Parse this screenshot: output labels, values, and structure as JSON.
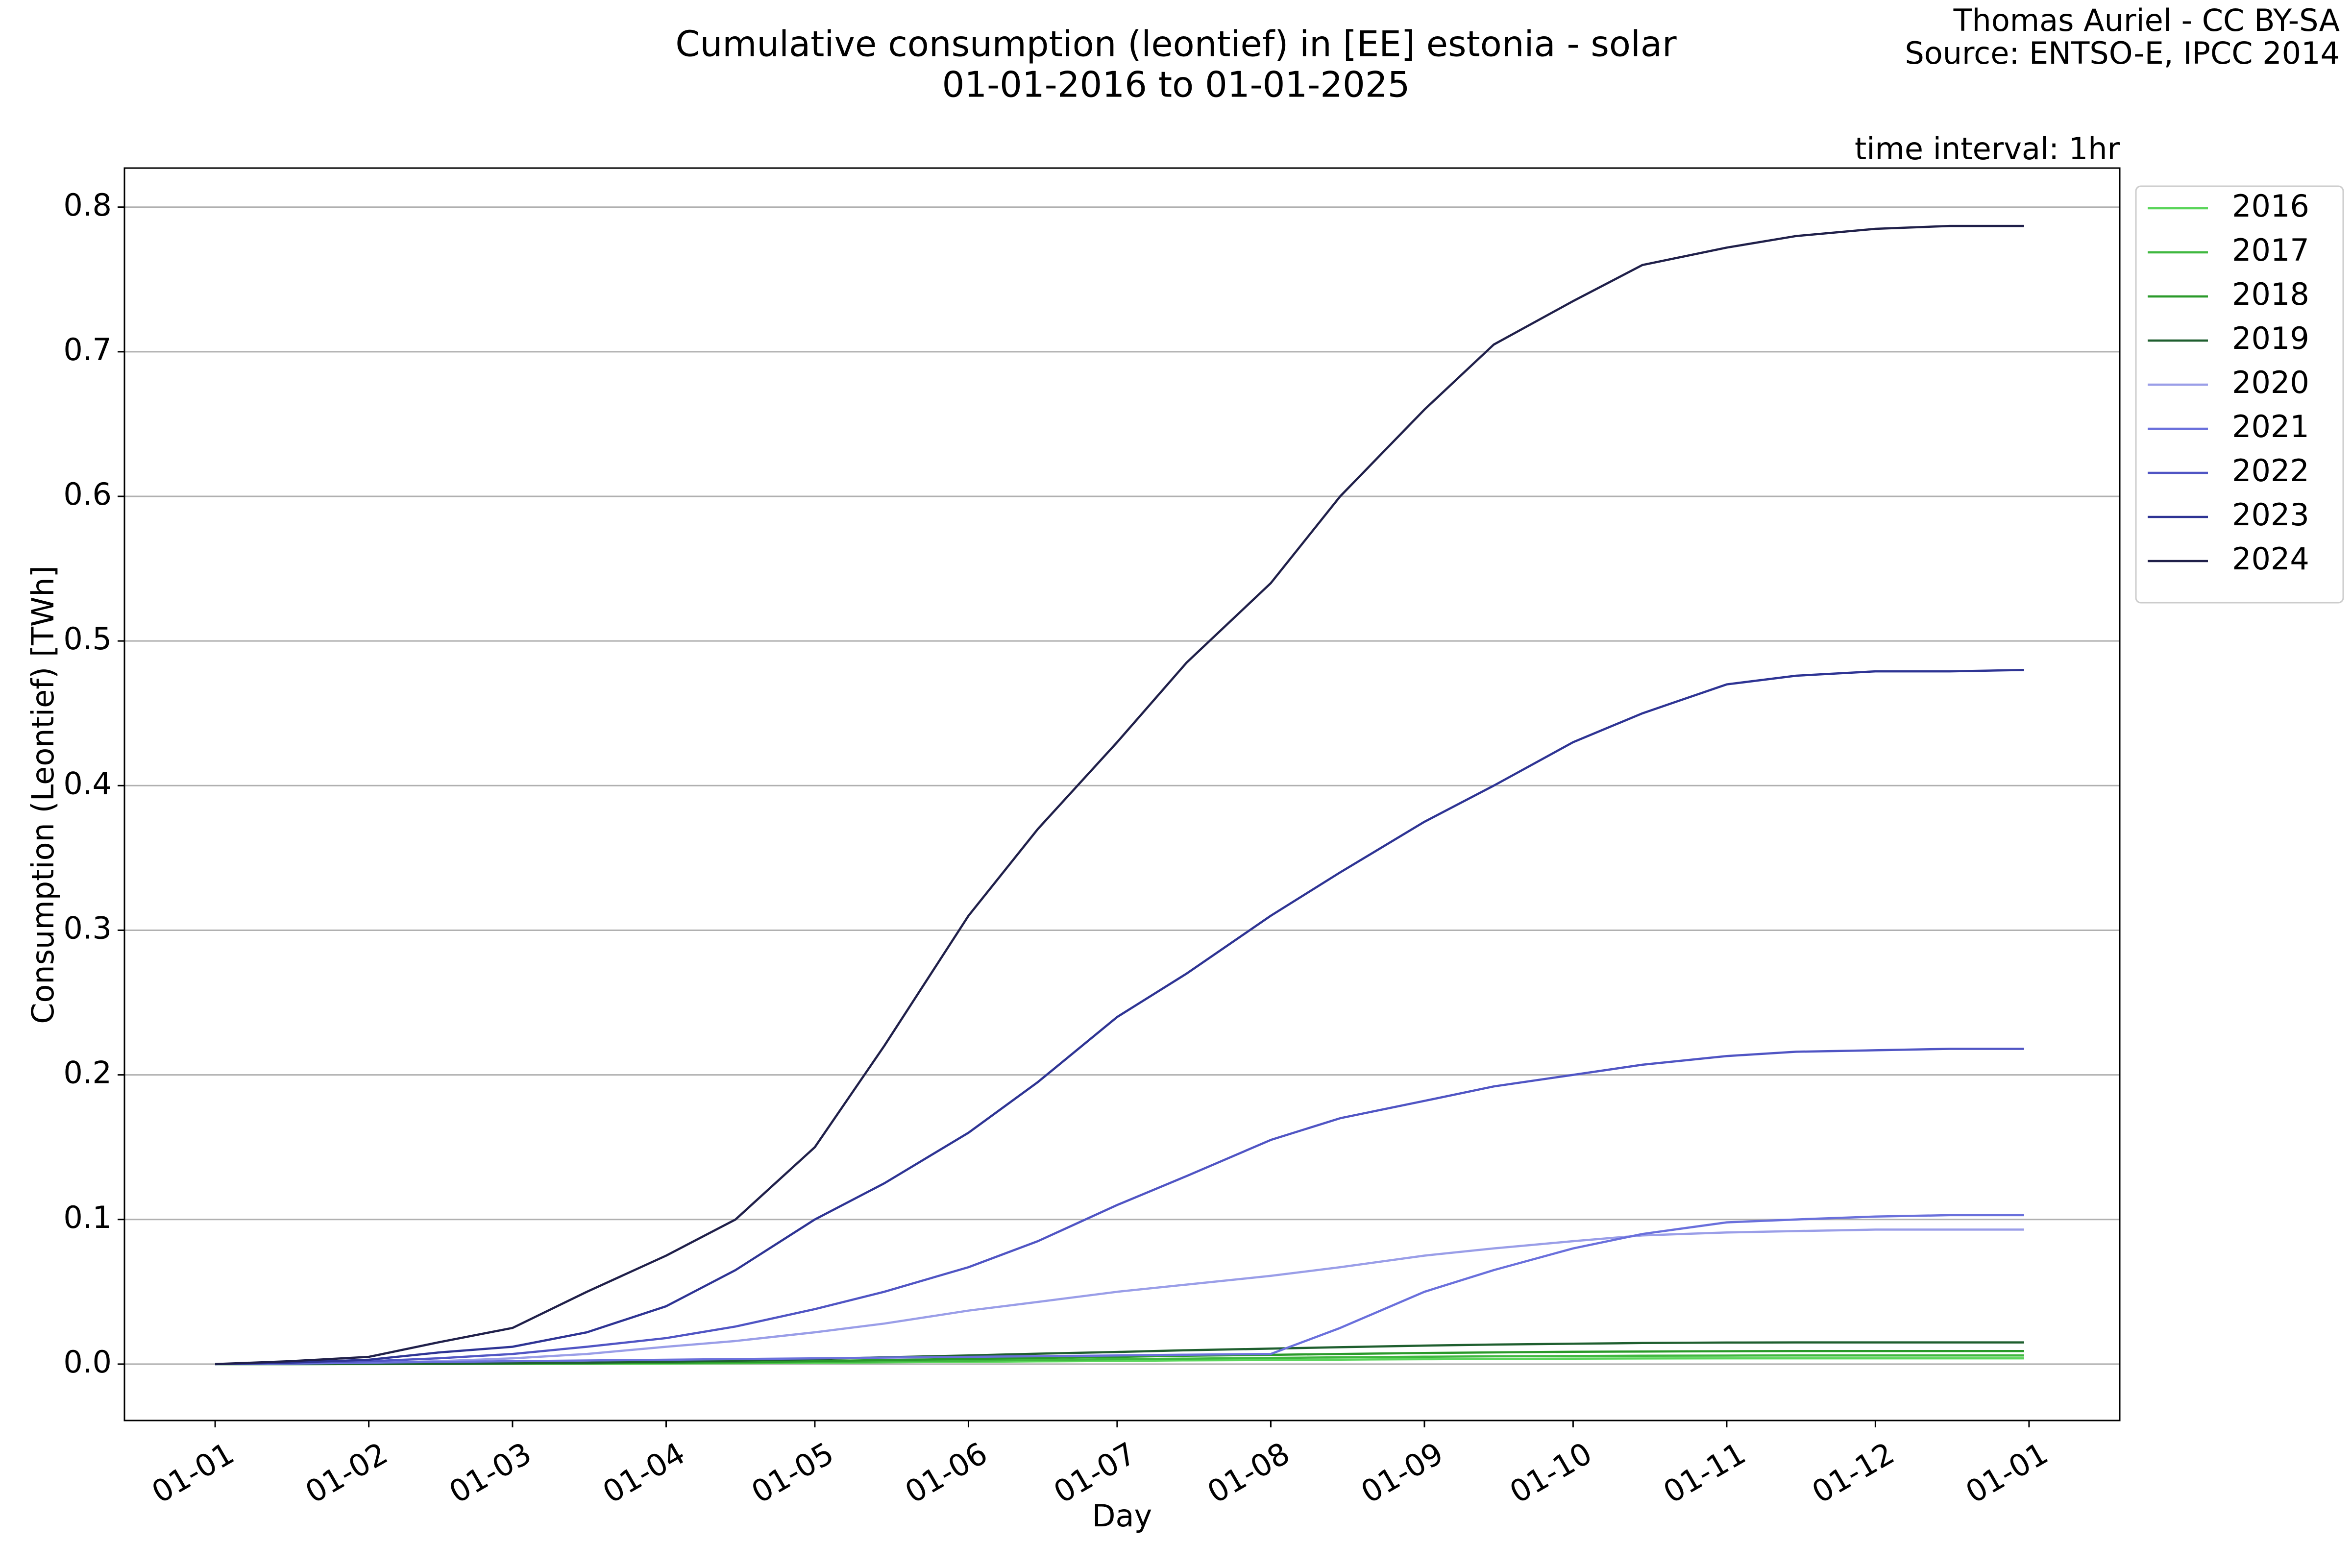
{
  "chart_data": {
    "type": "line",
    "title": "Cumulative consumption (leontief) in [EE] estonia - solar",
    "subtitle": "01-01-2016 to 01-01-2025",
    "credit": "Thomas Auriel - CC BY-SA",
    "source": "Source: ENTSO-E, IPCC 2014",
    "annotation": "time interval: 1hr",
    "x_label": "Day",
    "y_label": "Consumption (Leontief) [TWh]",
    "x": [
      0,
      15,
      31,
      45,
      60,
      75,
      91,
      105,
      121,
      135,
      152,
      166,
      182,
      196,
      213,
      227,
      244,
      258,
      274,
      288,
      305,
      319,
      335,
      350,
      365
    ],
    "xlim": [
      -18.3,
      384.3
    ],
    "xticks": [
      {
        "value": 0,
        "label": "01-01"
      },
      {
        "value": 31,
        "label": "01-02"
      },
      {
        "value": 60,
        "label": "01-03"
      },
      {
        "value": 91,
        "label": "01-04"
      },
      {
        "value": 121,
        "label": "01-05"
      },
      {
        "value": 152,
        "label": "01-06"
      },
      {
        "value": 182,
        "label": "01-07"
      },
      {
        "value": 213,
        "label": "01-08"
      },
      {
        "value": 244,
        "label": "01-09"
      },
      {
        "value": 274,
        "label": "01-10"
      },
      {
        "value": 305,
        "label": "01-11"
      },
      {
        "value": 335,
        "label": "01-12"
      },
      {
        "value": 366,
        "label": "01-01"
      }
    ],
    "ylim": [
      -0.039,
      0.827
    ],
    "yticks": [
      {
        "value": 0,
        "label": "0.0"
      },
      0.1,
      0.2,
      0.3,
      0.4,
      0.5,
      0.6,
      0.7,
      0.8
    ],
    "grid": true,
    "legend": "outside-right",
    "series": [
      {
        "name": "2016",
        "color": "#5ad55a",
        "values": [
          0,
          0,
          0,
          0.0001,
          0.0002,
          0.0003,
          0.0004,
          0.0006,
          0.0009,
          0.0012,
          0.0016,
          0.0019,
          0.0022,
          0.0026,
          0.0028,
          0.0031,
          0.0034,
          0.0036,
          0.0038,
          0.0039,
          0.004,
          0.004,
          0.004,
          0.004,
          0.004
        ]
      },
      {
        "name": "2017",
        "color": "#3fb83f",
        "values": [
          0,
          0,
          0.0001,
          0.0001,
          0.0002,
          0.0004,
          0.0007,
          0.001,
          0.0014,
          0.0019,
          0.0024,
          0.0029,
          0.0034,
          0.0038,
          0.0043,
          0.0047,
          0.0051,
          0.0054,
          0.0056,
          0.0058,
          0.0059,
          0.006,
          0.006,
          0.006,
          0.006
        ]
      },
      {
        "name": "2018",
        "color": "#2a9a2a",
        "values": [
          0,
          0,
          0.0001,
          0.0002,
          0.0004,
          0.0006,
          0.001,
          0.0014,
          0.0021,
          0.0028,
          0.0036,
          0.0043,
          0.005,
          0.0058,
          0.0064,
          0.007,
          0.0077,
          0.0081,
          0.0085,
          0.0087,
          0.0089,
          0.009,
          0.009,
          0.009,
          0.009
        ]
      },
      {
        "name": "2019",
        "color": "#1f5f2f",
        "values": [
          0,
          0,
          0.0002,
          0.0003,
          0.0006,
          0.001,
          0.0017,
          0.0024,
          0.0035,
          0.0047,
          0.006,
          0.0072,
          0.0084,
          0.0096,
          0.0107,
          0.0117,
          0.0128,
          0.0135,
          0.0141,
          0.0146,
          0.0149,
          0.015,
          0.015,
          0.015,
          0.015
        ]
      },
      {
        "name": "2020",
        "color": "#9a9ee8",
        "values": [
          0,
          0.0005,
          0.001,
          0.002,
          0.004,
          0.007,
          0.012,
          0.016,
          0.022,
          0.028,
          0.037,
          0.043,
          0.05,
          0.055,
          0.061,
          0.067,
          0.075,
          0.08,
          0.085,
          0.089,
          0.091,
          0.092,
          0.093,
          0.093,
          0.093
        ]
      },
      {
        "name": "2021",
        "color": "#6a70dc",
        "values": [
          0,
          0.0003,
          0.001,
          0.0015,
          0.002,
          0.0025,
          0.003,
          0.0035,
          0.004,
          0.0045,
          0.005,
          0.0055,
          0.006,
          0.0065,
          0.007,
          0.025,
          0.05,
          0.065,
          0.08,
          0.09,
          0.098,
          0.1,
          0.102,
          0.103,
          0.103
        ]
      },
      {
        "name": "2022",
        "color": "#5055c4",
        "values": [
          0,
          0.001,
          0.002,
          0.004,
          0.007,
          0.012,
          0.018,
          0.026,
          0.038,
          0.05,
          0.067,
          0.085,
          0.11,
          0.13,
          0.155,
          0.17,
          0.182,
          0.192,
          0.2,
          0.207,
          0.213,
          0.216,
          0.217,
          0.218,
          0.218
        ]
      },
      {
        "name": "2023",
        "color": "#2e3494",
        "values": [
          0,
          0.001,
          0.003,
          0.008,
          0.012,
          0.022,
          0.04,
          0.065,
          0.1,
          0.125,
          0.16,
          0.195,
          0.24,
          0.27,
          0.31,
          0.34,
          0.375,
          0.4,
          0.43,
          0.45,
          0.47,
          0.476,
          0.479,
          0.479,
          0.48
        ]
      },
      {
        "name": "2024",
        "color": "#20204a",
        "values": [
          0,
          0.002,
          0.005,
          0.015,
          0.025,
          0.05,
          0.075,
          0.1,
          0.15,
          0.22,
          0.31,
          0.37,
          0.43,
          0.485,
          0.54,
          0.6,
          0.66,
          0.705,
          0.735,
          0.76,
          0.772,
          0.78,
          0.785,
          0.787,
          0.787
        ]
      }
    ]
  }
}
